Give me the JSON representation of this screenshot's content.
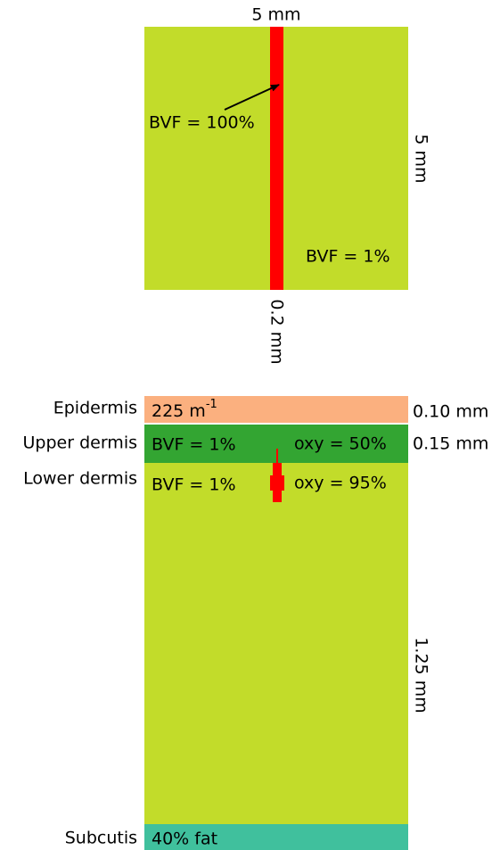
{
  "top_panel": {
    "width_label": "5 mm",
    "height_label": "5 mm",
    "vessel_label": "BVF = 100%",
    "tissue_label": "BVF = 1%",
    "vessel_width_label": "0.2 mm"
  },
  "layers": [
    {
      "name": "Epidermis",
      "content": "225 m",
      "content_superscript": "-1",
      "thickness": "0.10 mm"
    },
    {
      "name": "Upper dermis",
      "left_content": "BVF = 1%",
      "right_content": "oxy = 50%",
      "thickness": "0.15 mm"
    },
    {
      "name": "Lower dermis",
      "left_content": "BVF = 1%",
      "right_content": "oxy = 95%",
      "thickness": "1.25 mm"
    },
    {
      "name": "Subcutis",
      "content": "40% fat"
    }
  ]
}
